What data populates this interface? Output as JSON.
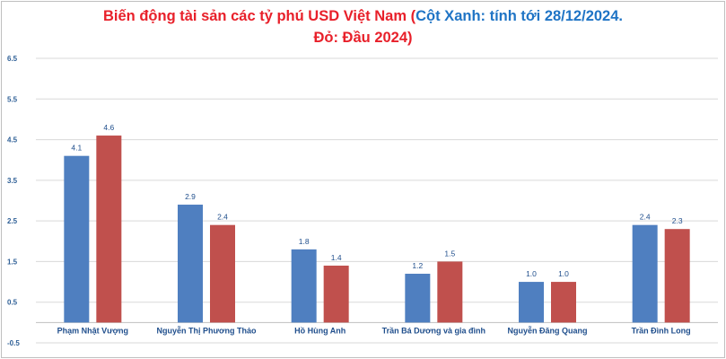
{
  "chart_data": {
    "type": "bar",
    "title_parts": [
      {
        "text": "Biến động tài sản các tỷ phú USD Việt Nam (",
        "color": "#e8202a"
      },
      {
        "text": "Cột Xanh: tính tới 28/12/2024.",
        "color": "#1f74c5"
      },
      {
        "text": "Đỏ: Đầu 2024)",
        "color": "#e8202a"
      }
    ],
    "categories": [
      "Phạm Nhật Vượng",
      "Nguyễn Thị Phương Thảo",
      "Hồ Hùng Anh",
      "Trần Bá Dương và gia đình",
      "Nguyễn Đăng Quang",
      "Trần Đình Long"
    ],
    "series": [
      {
        "values": [
          4.1,
          2.9,
          1.8,
          1.2,
          1.0,
          2.4
        ],
        "labels": [
          "4.1",
          "2.9",
          "1.8",
          "1.2",
          "1.0",
          "2.4"
        ],
        "color": "#4f7fc0"
      },
      {
        "values": [
          4.6,
          2.4,
          1.4,
          1.5,
          1.0,
          2.3
        ],
        "labels": [
          "4.6",
          "2.4",
          "1.4",
          "1.5",
          "1.0",
          "2.3"
        ],
        "color": "#c0504d"
      }
    ],
    "yticks": [
      "6.5",
      "5.5",
      "4.5",
      "3.5",
      "2.5",
      "1.5",
      "0.5",
      "-0.5"
    ],
    "ylim": [
      -0.5,
      6.5
    ],
    "grid": true,
    "legend": "none"
  }
}
